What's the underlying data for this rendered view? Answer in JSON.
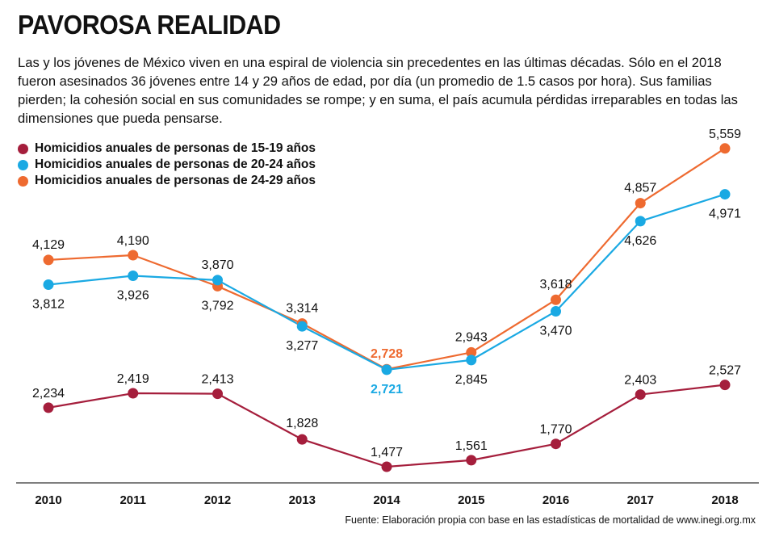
{
  "title": "PAVOROSA REALIDAD",
  "subtitle": "Las y los jóvenes de México viven en una espiral de violencia sin precedentes en las últimas décadas. Sólo en el 2018 fueron asesinados 36 jóvenes entre 14 y 29 años de edad, por día (un promedio de 1.5 casos por hora). Sus familias pierden; la cohesión social en sus comunidades se rompe; y en suma, el país acumula pérdidas irreparables en todas las dimensiones que pueda pensarse.",
  "source": "Fuente: Elaboración propia con base en las estadísticas de mortalidad de www.inegi.org.mx",
  "chart_data": {
    "type": "line",
    "title": "PAVOROSA REALIDAD",
    "xlabel": "",
    "ylabel": "",
    "grid": false,
    "legend_position": "top-left",
    "categories": [
      "2010",
      "2011",
      "2012",
      "2013",
      "2014",
      "2015",
      "2016",
      "2017",
      "2018"
    ],
    "ylim": [
      1200,
      6000
    ],
    "series": [
      {
        "name": "Homicidios anuales de personas de 15-19 años",
        "color": "#a51e3c",
        "values": [
          2234,
          2419,
          2413,
          1828,
          1477,
          1561,
          1770,
          2403,
          2527
        ],
        "labels": [
          "2,234",
          "2,419",
          "2,413",
          "1,828",
          "1,477",
          "1,561",
          "1,770",
          "2,403",
          "2,527"
        ]
      },
      {
        "name": "Homicidios anuales de personas de 20-24 años",
        "color": "#1aa9e3",
        "values": [
          3812,
          3926,
          3870,
          3277,
          2721,
          2845,
          3470,
          4626,
          4971
        ],
        "labels": [
          "3,812",
          "3,926",
          "3,870",
          "3,277",
          "2,721",
          "2,845",
          "3,470",
          "4,626",
          "4,971"
        ]
      },
      {
        "name": "Homicidios anuales de personas de 24-29 años",
        "color": "#ee6a30",
        "values": [
          4129,
          4190,
          3792,
          3314,
          2728,
          2943,
          3618,
          4857,
          5559
        ],
        "labels": [
          "4,129",
          "4,190",
          "3,792",
          "3,314",
          "2,728",
          "2,943",
          "3,618",
          "4,857",
          "5,559"
        ]
      }
    ]
  }
}
